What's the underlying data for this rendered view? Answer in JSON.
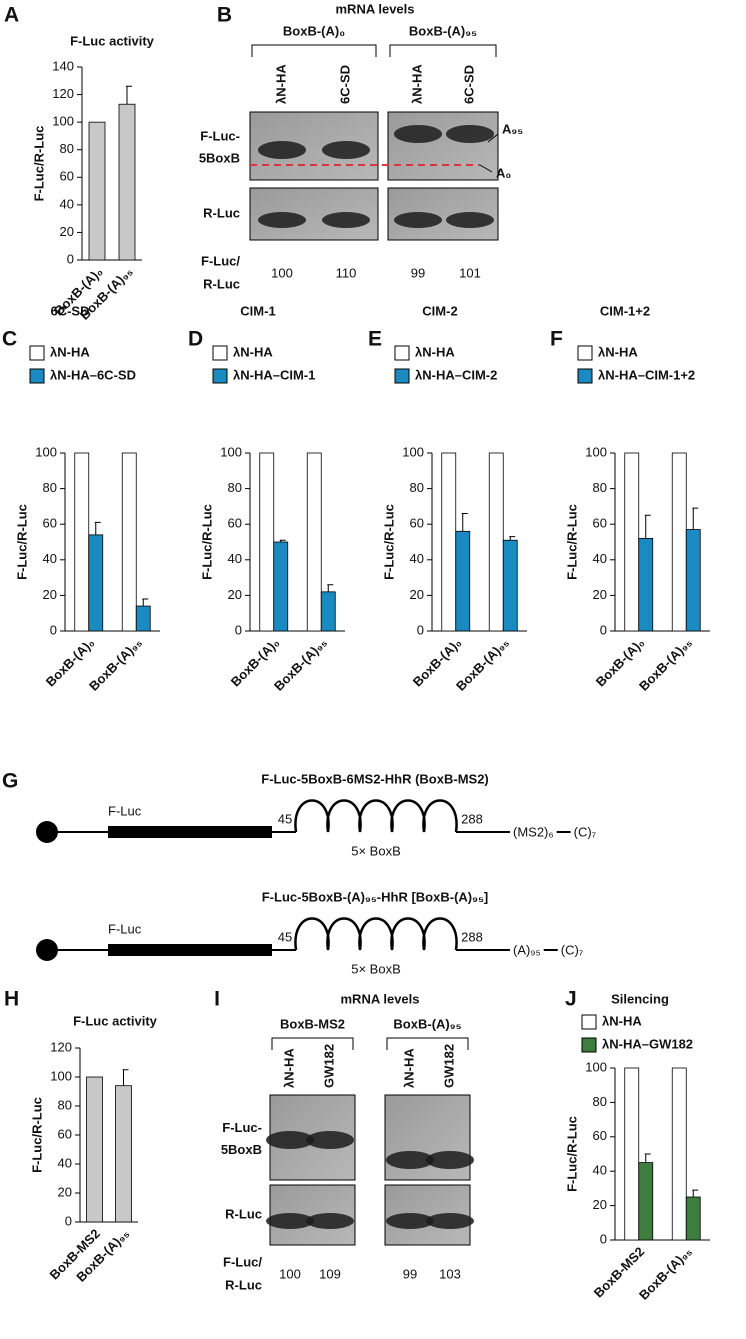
{
  "chart_data": [
    {
      "type": "bar",
      "panel": "A",
      "title": "F-Luc activity",
      "y_label": "F-Luc/R-Luc",
      "categories": [
        "BoxB-(A)₀",
        "BoxB-(A)₉₅"
      ],
      "values": [
        100,
        113
      ],
      "errors": [
        null,
        13
      ],
      "color": "#c8c8c8",
      "ylim": [
        0,
        140
      ],
      "yticks": [
        0,
        20,
        40,
        60,
        80,
        100,
        120,
        140
      ]
    },
    {
      "type": "bar",
      "panel": "C",
      "title": "6C-SD",
      "y_label": "F-Luc/R-Luc",
      "categories": [
        "BoxB-(A)₀",
        "BoxB-(A)₉₅"
      ],
      "series": [
        {
          "name": "λN-HA",
          "color": "#ffffff",
          "values": [
            100,
            100
          ]
        },
        {
          "name": "λN-HA–6C-SD",
          "color": "#1a8ac0",
          "values": [
            54,
            14
          ],
          "errors": [
            7,
            4
          ]
        }
      ],
      "ylim": [
        0,
        100
      ],
      "yticks": [
        0,
        20,
        40,
        60,
        80,
        100
      ]
    },
    {
      "type": "bar",
      "panel": "D",
      "title": "CIM-1",
      "y_label": "F-Luc/R-Luc",
      "categories": [
        "BoxB-(A)₀",
        "BoxB-(A)₉₅"
      ],
      "series": [
        {
          "name": "λN-HA",
          "color": "#ffffff",
          "values": [
            100,
            100
          ]
        },
        {
          "name": "λN-HA–CIM-1",
          "color": "#1a8ac0",
          "values": [
            50,
            22
          ],
          "errors": [
            1,
            4
          ]
        }
      ],
      "ylim": [
        0,
        100
      ],
      "yticks": [
        0,
        20,
        40,
        60,
        80,
        100
      ]
    },
    {
      "type": "bar",
      "panel": "E",
      "title": "CIM-2",
      "y_label": "F-Luc/R-Luc",
      "categories": [
        "BoxB-(A)₀",
        "BoxB-(A)₉₅"
      ],
      "series": [
        {
          "name": "λN-HA",
          "color": "#ffffff",
          "values": [
            100,
            100
          ]
        },
        {
          "name": "λN-HA–CIM-2",
          "color": "#1a8ac0",
          "values": [
            56,
            51
          ],
          "errors": [
            10,
            2
          ]
        }
      ],
      "ylim": [
        0,
        100
      ],
      "yticks": [
        0,
        20,
        40,
        60,
        80,
        100
      ]
    },
    {
      "type": "bar",
      "panel": "F",
      "title": "CIM-1+2",
      "y_label": "F-Luc/R-Luc",
      "categories": [
        "BoxB-(A)₀",
        "BoxB-(A)₉₅"
      ],
      "series": [
        {
          "name": "λN-HA",
          "color": "#ffffff",
          "values": [
            100,
            100
          ]
        },
        {
          "name": "λN-HA–CIM-1+2",
          "color": "#1a8ac0",
          "values": [
            52,
            57
          ],
          "errors": [
            13,
            12
          ]
        }
      ],
      "ylim": [
        0,
        100
      ],
      "yticks": [
        0,
        20,
        40,
        60,
        80,
        100
      ]
    },
    {
      "type": "bar",
      "panel": "H",
      "title": "F-Luc activity",
      "y_label": "F-Luc/R-Luc",
      "categories": [
        "BoxB-MS2",
        "BoxB-(A)₉₅"
      ],
      "values": [
        100,
        94
      ],
      "errors": [
        null,
        11
      ],
      "color": "#c8c8c8",
      "ylim": [
        0,
        120
      ],
      "yticks": [
        0,
        20,
        40,
        60,
        80,
        100,
        120
      ]
    },
    {
      "type": "bar",
      "panel": "J",
      "title": "Silencing",
      "y_label": "F-Luc/R-Luc",
      "categories": [
        "BoxB-MS2",
        "BoxB-(A)₉₅"
      ],
      "series": [
        {
          "name": "λN-HA",
          "color": "#ffffff",
          "values": [
            100,
            100
          ]
        },
        {
          "name": "λN-HA–GW182",
          "color": "#3d7d3d",
          "values": [
            45,
            25
          ],
          "errors": [
            5,
            4
          ]
        }
      ],
      "ylim": [
        0,
        100
      ],
      "yticks": [
        0,
        20,
        40,
        60,
        80,
        100
      ]
    }
  ],
  "gels": [
    {
      "panel": "B",
      "title": "mRNA levels",
      "groups": [
        {
          "name": "BoxB-(A)₀",
          "lanes": [
            "λN-HA",
            "6C-SD"
          ],
          "ratios": [
            100,
            110
          ]
        },
        {
          "name": "BoxB-(A)₉₅",
          "lanes": [
            "λN-HA",
            "6C-SD"
          ],
          "ratios": [
            99,
            101
          ]
        }
      ],
      "rows": [
        [
          "F-Luc-",
          "5BoxB"
        ],
        [
          "R-Luc"
        ]
      ],
      "ratio_label": [
        "F-Luc/",
        "R-Luc"
      ],
      "markers": [
        "A₉₅",
        "A₀"
      ]
    },
    {
      "panel": "I",
      "title": "mRNA levels",
      "groups": [
        {
          "name": "BoxB-MS2",
          "lanes": [
            "λN-HA",
            "GW182"
          ],
          "ratios": [
            100,
            109
          ]
        },
        {
          "name": "BoxB-(A)₉₅",
          "lanes": [
            "λN-HA",
            "GW182"
          ],
          "ratios": [
            99,
            103
          ]
        }
      ],
      "rows": [
        [
          "F-Luc-",
          "5BoxB"
        ],
        [
          "R-Luc"
        ]
      ],
      "ratio_label": [
        "F-Luc/",
        "R-Luc"
      ]
    }
  ],
  "diagram": {
    "panel": "G",
    "constructs": [
      {
        "title": "F-Luc-5BoxB-6MS2-HhR (BoxB-MS2)",
        "orf": "F-Luc",
        "pos1": "45",
        "loops": "5× BoxB",
        "pos2": "288",
        "tail": "(MS2)₆",
        "end": "(C)₇"
      },
      {
        "title": "F-Luc-5BoxB-(A)₉₅-HhR [BoxB-(A)₉₅]",
        "orf": "F-Luc",
        "pos1": "45",
        "loops": "5× BoxB",
        "pos2": "288",
        "tail": "(A)₉₅",
        "end": "(C)₇"
      }
    ]
  }
}
